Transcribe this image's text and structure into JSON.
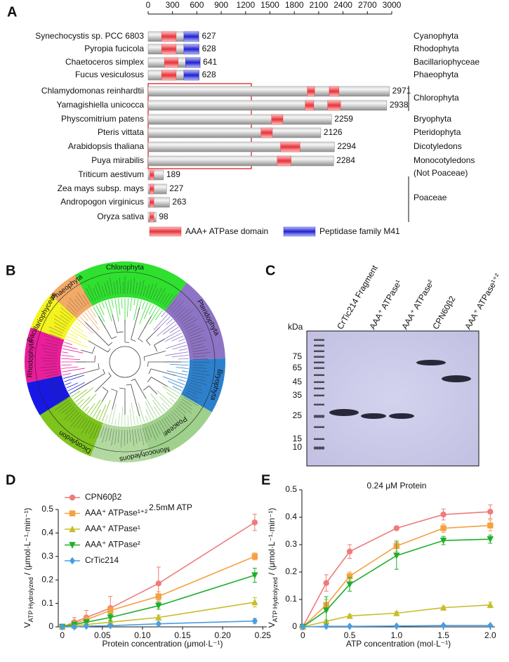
{
  "panel_b": {
    "label": "B",
    "clades": [
      "Chlorophyta",
      "Pteridophyta",
      "Bryophyta",
      "Poaceae",
      "Monocotyledons",
      "Dicotyledon",
      "Rhodophyta",
      "Bacillariophyceae",
      "Phaeophyta"
    ]
  },
  "panel_c": {
    "label": "C",
    "lanes": [
      "CrTic214 Fragment",
      "AAA⁺ ATPase¹",
      "AAA⁺ ATPase²",
      "CPN60β2",
      "AAA⁺ ATPase¹⁺²"
    ],
    "unit": "kDa",
    "markers": [
      75,
      65,
      45,
      35,
      25,
      15,
      10
    ]
  },
  "chart_data": [
    {
      "panel_label": "A",
      "type": "hbar",
      "categories": [
        "Synechocystis sp. PCC 6803",
        "Pyropia fucicola",
        "Chaetoceros simplex",
        "Fucus vesiculosus",
        "Chlamydomonas reinhardtii",
        "Yamagishiella unicocca",
        "Physcomitrium patens",
        "Pteris vittata",
        "Arabidopsis thaliana",
        "Puya mirabilis",
        "Triticum aestivum",
        "Zea mays subsp. mays",
        "Andropogon virginicus",
        "Oryza sativa"
      ],
      "values": [
        627,
        628,
        641,
        628,
        2971,
        2938,
        2259,
        2126,
        2294,
        2284,
        189,
        227,
        263,
        98
      ],
      "color": "#c4c4c4",
      "xlim": [
        0,
        3000
      ],
      "xticks": [
        0,
        300,
        600,
        900,
        1200,
        1500,
        1800,
        2100,
        2400,
        2700,
        3000
      ],
      "groups": [
        "Cyanophyta",
        "Rhodophyta",
        "Bacillariophyceae",
        "Phaeophyta",
        "Chlorophyta",
        "Bryophyta",
        "Pteridophyta",
        "Dicotyledons",
        "Monocotyledons",
        "(Not Poaceae)",
        "Poaceae"
      ],
      "domains": [
        {
          "name": "AAA+ ATPase domain",
          "color": "#e8333a",
          "segments": [
            [
              [
                165,
                345
              ]
            ],
            [
              [
                165,
                345
              ]
            ],
            [
              [
                200,
                370
              ]
            ],
            [
              [
                165,
                345
              ]
            ],
            [
              [
                1960,
                2050
              ],
              [
                2230,
                2350
              ]
            ],
            [
              [
                1935,
                2040
              ],
              [
                2210,
                2370
              ]
            ],
            [
              [
                1520,
                1660
              ]
            ],
            [
              [
                1390,
                1530
              ]
            ],
            [
              [
                1630,
                1870
              ]
            ],
            [
              [
                1590,
                1760
              ]
            ],
            [
              [
                20,
                70
              ]
            ],
            [
              [
                20,
                70
              ]
            ],
            [
              [
                20,
                70
              ]
            ],
            [
              [
                20,
                70
              ]
            ]
          ]
        },
        {
          "name": "Peptidase family M41",
          "color": "#2020d0",
          "segments": [
            [
              [
                440,
                620
              ]
            ],
            [
              [
                440,
                625
              ]
            ],
            [
              [
                460,
                640
              ]
            ],
            [
              [
                440,
                625
              ]
            ],
            [],
            [],
            [],
            [],
            [],
            [],
            [],
            [],
            [],
            []
          ]
        }
      ]
    },
    {
      "panel_label": "D",
      "type": "line",
      "annotation": "2.5mM ATP",
      "xlabel": "Protein concentration (μmol·L⁻¹)",
      "ylabel": {
        "symbol": "V",
        "subscript": "ATP Hydrolyzed",
        "unit": "/ (μmol·L⁻¹·min⁻¹)"
      },
      "x": [
        0,
        0.015,
        0.03,
        0.06,
        0.12,
        0.24
      ],
      "xlim": [
        -0.005,
        0.255
      ],
      "xticks": [
        0,
        0.05,
        {
          "value": 0.1,
          "label": "0.10"
        },
        0.15,
        {
          "value": 0.2,
          "label": "0.20"
        },
        0.25
      ],
      "ylim": [
        0,
        0.5
      ],
      "yticks": [
        0,
        0.1,
        0.2,
        0.3,
        0.4,
        0.5
      ],
      "series": [
        {
          "name": "CPN60β2",
          "color": "#f07b7b",
          "marker": "circle",
          "values": [
            0,
            0.02,
            0.04,
            0.08,
            0.185,
            0.445
          ],
          "errors": [
            0.01,
            0.02,
            0.03,
            0.05,
            0.07,
            0.035
          ]
        },
        {
          "name": "AAA⁺ ATPase¹⁺²",
          "color": "#f5a142",
          "marker": "square",
          "values": [
            0,
            0.015,
            0.03,
            0.07,
            0.13,
            0.3
          ],
          "errors": [
            0.005,
            0.01,
            0.015,
            0.015,
            0.02,
            0.015
          ]
        },
        {
          "name": "AAA⁺ ATPase¹",
          "color": "#c6be2a",
          "marker": "triangle-up",
          "values": [
            0,
            0.005,
            0.01,
            0.02,
            0.04,
            0.105
          ],
          "errors": [
            0.005,
            0.005,
            0.005,
            0.01,
            0.01,
            0.02
          ]
        },
        {
          "name": "AAA⁺ ATPase²",
          "color": "#1fae2a",
          "marker": "triangle-down",
          "values": [
            0,
            0.01,
            0.02,
            0.04,
            0.09,
            0.22
          ],
          "errors": [
            0.005,
            0.01,
            0.01,
            0.015,
            0.015,
            0.03
          ]
        },
        {
          "name": "CrTic214",
          "color": "#4a9de0",
          "marker": "diamond",
          "values": [
            0,
            0,
            0.003,
            0.005,
            0.013,
            0.025
          ],
          "errors": [
            0.002,
            0.002,
            0.002,
            0.003,
            0.005,
            0.01
          ]
        }
      ]
    },
    {
      "panel_label": "E",
      "type": "line",
      "annotation": "0.24 μM Protein",
      "xlabel": "ATP concentration (mol·L⁻¹)",
      "ylabel": {
        "symbol": "V",
        "subscript": "ATP Hydrolyzed",
        "unit": "/ (μmol·L⁻¹·min⁻¹)"
      },
      "x": [
        0,
        0.25,
        0.5,
        1,
        1.5,
        2
      ],
      "xlim": [
        -0.01,
        2.05
      ],
      "xticks": [
        0,
        0.5,
        {
          "value": 1,
          "label": "1.0"
        },
        1.5,
        {
          "value": 2,
          "label": "2.0"
        }
      ],
      "ylim": [
        0,
        0.5
      ],
      "yticks": [
        0,
        0.1,
        0.2,
        0.3,
        0.4,
        0.5
      ],
      "series": [
        {
          "color": "#f07b7b",
          "marker": "circle",
          "values": [
            0,
            0.16,
            0.275,
            0.36,
            0.41,
            0.42
          ],
          "errors": [
            0.005,
            0.03,
            0.025,
            0.005,
            0.02,
            0.025
          ]
        },
        {
          "color": "#f5a142",
          "marker": "square",
          "values": [
            0,
            0.08,
            0.185,
            0.295,
            0.36,
            0.37
          ],
          "errors": [
            0.005,
            0.02,
            0.015,
            0.02,
            0.015,
            0.02
          ]
        },
        {
          "color": "#c6be2a",
          "marker": "triangle-up",
          "values": [
            0,
            0.02,
            0.04,
            0.05,
            0.07,
            0.08
          ],
          "errors": [
            0.002,
            0.005,
            0.005,
            0.005,
            0.005,
            0.01
          ]
        },
        {
          "color": "#1fae2a",
          "marker": "triangle-down",
          "values": [
            0,
            0.06,
            0.155,
            0.26,
            0.315,
            0.32
          ],
          "errors": [
            0.003,
            0.05,
            0.025,
            0.05,
            0.015,
            0.015
          ]
        },
        {
          "color": "#4a9de0",
          "marker": "diamond",
          "values": [
            0,
            0.002,
            0.002,
            0.003,
            0.005,
            0.005
          ],
          "errors": [
            0.002,
            0.002,
            0.002,
            0.002,
            0.002,
            0.002
          ]
        }
      ]
    }
  ]
}
